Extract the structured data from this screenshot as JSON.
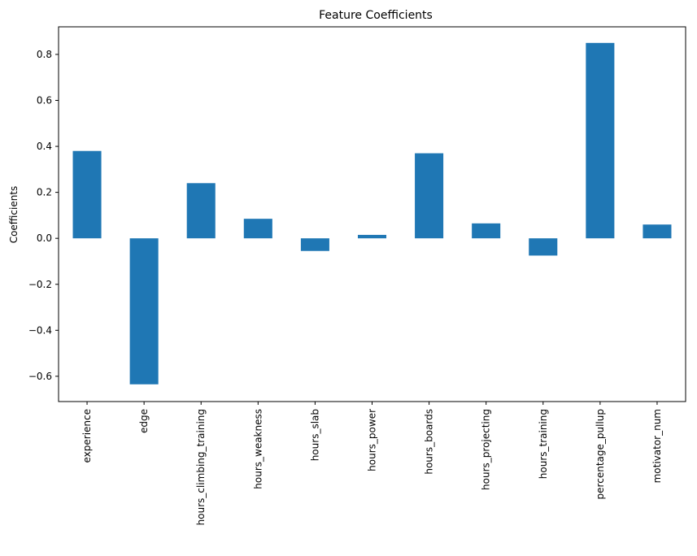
{
  "chart_data": {
    "type": "bar",
    "title": "Feature Coefficients",
    "xlabel": "",
    "ylabel": "Coefficients",
    "categories": [
      "experience",
      "edge",
      "hours_climbing_training",
      "hours_weakness",
      "hours_slab",
      "hours_power",
      "hours_boards",
      "hours_projecting",
      "hours_training",
      "percentage_pullup",
      "motivator_num"
    ],
    "values": [
      0.38,
      -0.635,
      0.24,
      0.085,
      -0.055,
      0.015,
      0.37,
      0.065,
      -0.075,
      0.85,
      0.06
    ],
    "ylim": [
      -0.71,
      0.92
    ],
    "yticks": [
      -0.6,
      -0.4,
      -0.2,
      0.0,
      0.2,
      0.4,
      0.6,
      0.8
    ],
    "ytick_labels": [
      "−0.6",
      "−0.4",
      "−0.2",
      "0.0",
      "0.2",
      "0.4",
      "0.6",
      "0.8"
    ],
    "grid": false,
    "bar_color": "#1f77b4"
  }
}
